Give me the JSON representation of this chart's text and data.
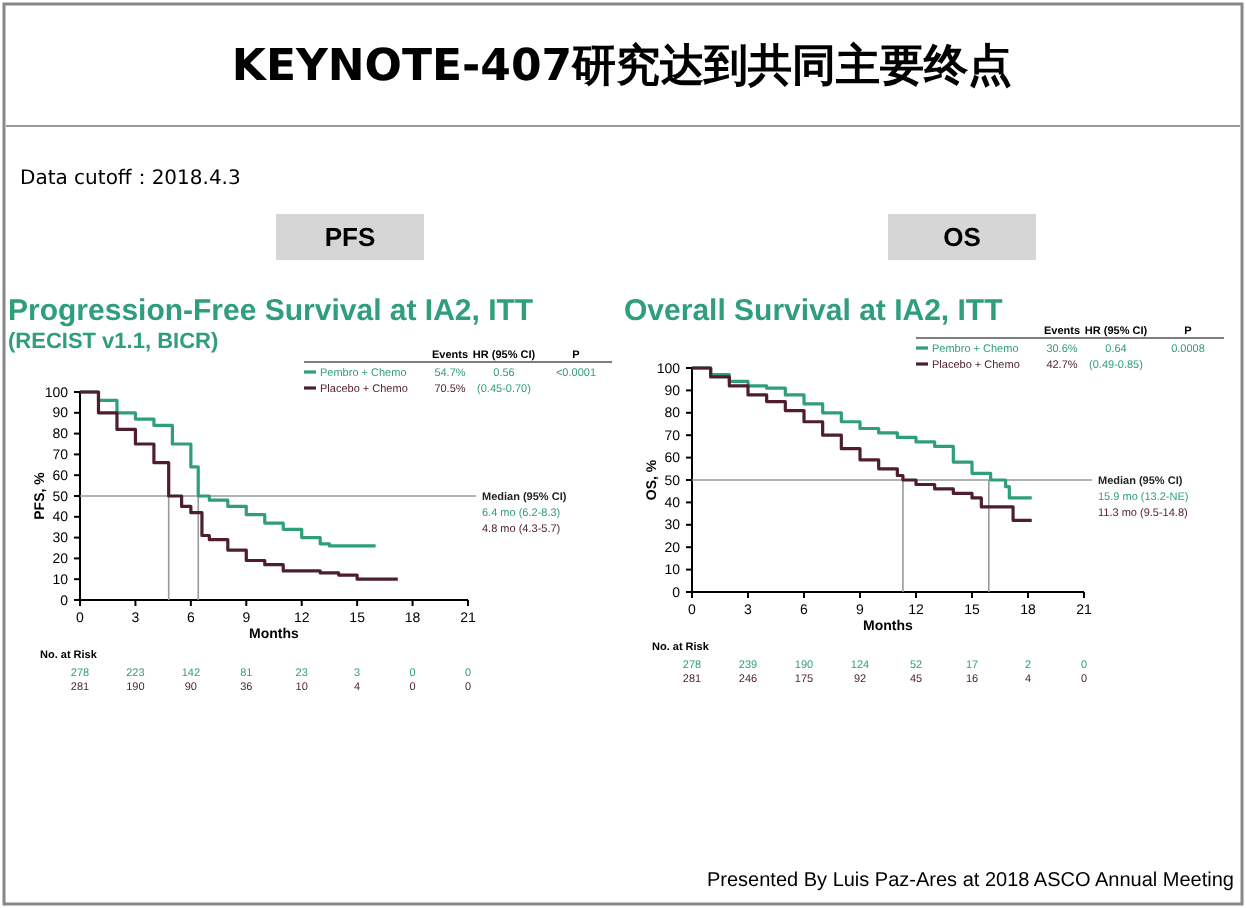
{
  "chart_data": [
    {
      "type": "other",
      "title": "KEYNOTE-407研究达到共同主要终点",
      "annotations": [
        "Data cutoff：2018.4.3",
        "Presented By Luis Paz-Ares at 2018 ASCO Annual Meeting"
      ]
    },
    {
      "type": "step",
      "title": "Progression-Free Survival at IA2, ITT",
      "subtitle": "(RECIST v1.1, BICR)",
      "xlabel": "Months",
      "ylabel": "PFS, %",
      "xlim": [
        0,
        21
      ],
      "xticks": [
        0,
        3,
        6,
        9,
        12,
        15,
        18,
        21
      ],
      "ylim": [
        0,
        100
      ],
      "yticks": [
        0,
        10,
        20,
        30,
        40,
        50,
        60,
        70,
        80,
        90,
        100
      ],
      "grid": false,
      "legend": "top right",
      "series": [
        {
          "name": "Pembro + Chemo",
          "color": "#2f9e7c",
          "x": [
            0,
            1,
            2,
            3,
            4,
            5,
            6,
            6.4,
            7,
            8,
            9,
            10,
            11,
            12,
            13,
            13.5,
            16
          ],
          "values": [
            100,
            96,
            90,
            87,
            84,
            75,
            64,
            50,
            48,
            45,
            41,
            37,
            34,
            30,
            27,
            26,
            26
          ]
        },
        {
          "name": "Placebo + Chemo",
          "color": "#4e1e2c",
          "x": [
            0,
            1,
            2,
            3,
            4,
            4.8,
            5.5,
            6,
            6.6,
            7,
            8,
            9,
            10,
            11,
            13,
            14,
            15,
            17.2
          ],
          "values": [
            100,
            90,
            82,
            75,
            66,
            50,
            45,
            42,
            31,
            29,
            24,
            19,
            17,
            14,
            13,
            12,
            10,
            10
          ]
        }
      ],
      "ref_lines": [
        {
          "axis": "y",
          "value": 50,
          "color": "#999999"
        },
        {
          "axis": "x",
          "value": 4.8,
          "color": "#999999"
        },
        {
          "axis": "x",
          "value": 6.4,
          "color": "#999999"
        }
      ],
      "annotations": [
        "PFS",
        "Events",
        "HR (95% CI)",
        "P",
        "54.7%",
        "0.56",
        "(0.45-0.70)",
        "<0.0001",
        "70.5%",
        "Median (95% CI)",
        "6.4 mo (6.2-8.3)",
        "4.8 mo (4.3-5.7)",
        "No. at Risk",
        "278",
        "223",
        "142",
        "81",
        "23",
        "3",
        "0",
        "0",
        "281",
        "190",
        "90",
        "36",
        "10",
        "4",
        "0",
        "0"
      ]
    },
    {
      "type": "step",
      "title": "Overall Survival at IA2, ITT",
      "xlabel": "Months",
      "ylabel": "OS, %",
      "xlim": [
        0,
        21
      ],
      "xticks": [
        0,
        3,
        6,
        9,
        12,
        15,
        18,
        21
      ],
      "ylim": [
        0,
        100
      ],
      "yticks": [
        0,
        10,
        20,
        30,
        40,
        50,
        60,
        70,
        80,
        90,
        100
      ],
      "grid": false,
      "legend": "top right",
      "series": [
        {
          "name": "Pembro + Chemo",
          "color": "#2f9e7c",
          "x": [
            0,
            1,
            2,
            3,
            4,
            5,
            6,
            7,
            8,
            9,
            10,
            11,
            12,
            13,
            14,
            15,
            16,
            16.8,
            17,
            18.2
          ],
          "values": [
            100,
            97,
            94,
            92,
            91,
            88,
            84,
            80,
            76,
            73,
            71,
            69,
            67,
            65,
            58,
            53,
            50,
            47,
            42,
            42
          ]
        },
        {
          "name": "Placebo + Chemo",
          "color": "#4e1e2c",
          "x": [
            0,
            1,
            2,
            3,
            4,
            5,
            6,
            7,
            8,
            9,
            10,
            11,
            11.3,
            12,
            13,
            14,
            15,
            15.5,
            17.2,
            18.2
          ],
          "values": [
            100,
            96,
            92,
            88,
            85,
            81,
            76,
            70,
            64,
            59,
            55,
            52,
            50,
            48,
            46,
            44,
            42,
            38,
            32,
            32
          ]
        }
      ],
      "ref_lines": [
        {
          "axis": "y",
          "value": 50,
          "color": "#999999"
        },
        {
          "axis": "x",
          "value": 11.3,
          "color": "#999999"
        },
        {
          "axis": "x",
          "value": 15.9,
          "color": "#999999"
        }
      ],
      "annotations": [
        "OS",
        "Events",
        "HR (95% CI)",
        "P",
        "30.6%",
        "0.64",
        "(0.49-0.85)",
        "0.0008",
        "42.7%",
        "Median (95% CI)",
        "15.9 mo (13.2-NE)",
        "11.3 mo (9.5-14.8)",
        "No. at Risk",
        "278",
        "239",
        "190",
        "124",
        "52",
        "17",
        "2",
        "0",
        "281",
        "246",
        "175",
        "92",
        "45",
        "16",
        "4",
        "0"
      ]
    }
  ]
}
